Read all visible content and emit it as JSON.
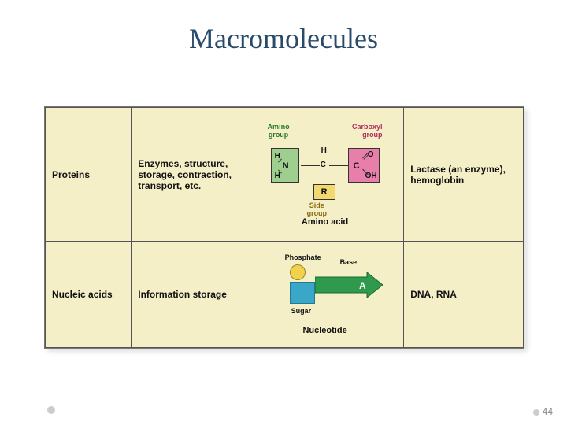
{
  "title": "Macromolecules",
  "page_number": "44",
  "table": {
    "background": "#f5efc8",
    "border_color": "#555555",
    "col_widths_pct": [
      18,
      24,
      33,
      25
    ],
    "rows": [
      {
        "name": "Proteins",
        "func": "Enzymes, structure, storage, contraction, transport, etc.",
        "example": "Lactase (an enzyme), hemoglobin",
        "diagram_caption": "Amino acid",
        "diagram": {
          "type": "amino_acid",
          "label_amino": "Amino group",
          "label_carboxyl": "Carboxyl group",
          "label_side": "Side group",
          "amino_box_color": "#9fcf8f",
          "carboxyl_box_color": "#e77faa",
          "side_box_color": "#f1d870",
          "center_atom": "C",
          "top_atom": "H",
          "amino_atoms": [
            "H",
            "N",
            "H"
          ],
          "carboxyl_atoms": [
            "O",
            "C",
            "OH"
          ],
          "side_atom": "R"
        }
      },
      {
        "name": "Nucleic acids",
        "func": "Information storage",
        "example": "DNA, RNA",
        "diagram_caption": "Nucleotide",
        "diagram": {
          "type": "nucleotide",
          "label_phosphate": "Phosphate",
          "label_base": "Base",
          "label_sugar": "Sugar",
          "phosphate_color": "#f1d24a",
          "sugar_color": "#3aa7c9",
          "base_color": "#2f9a4e",
          "base_letter": "A",
          "base_outline": "#1a6a33"
        }
      }
    ]
  }
}
